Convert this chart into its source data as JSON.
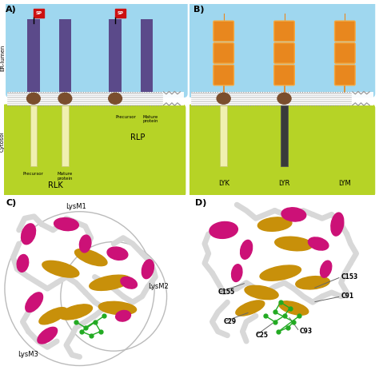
{
  "bg_color": "#ffffff",
  "sky_blue": "#87CEEB",
  "lime_green": "#AACC00",
  "purple_dark": "#5B4A8A",
  "orange_dark": "#E8871E",
  "orange_light": "#F5A940",
  "yellow_light": "#F0F0B0",
  "dark_gray": "#3A3A3A",
  "brown_oval": "#7A4E2D",
  "red_flag": "#CC1111",
  "magenta": "#CC1177",
  "gold": "#C8900A",
  "green_mol": "#22AA22",
  "membrane_gray": "#CCCCCC",
  "dot_gray": "#999999",
  "ribbon_gray": "#D8D8D8",
  "ribbon_gray_dark": "#AAAAAA",
  "panel_labels": [
    "A)",
    "B)",
    "C)",
    "D)"
  ],
  "er_lumen_label": "ER-lumen",
  "cytosol_label": "Cytosol",
  "rlk_label": "RLK",
  "rlp_label": "RLP",
  "lyk_label": "LYK",
  "lyr_label": "LYR",
  "lym_label": "LYM",
  "lysm1_label": "LysM1",
  "lysm2_label": "LysM2",
  "lysm3_label": "LysM3",
  "sp_label": "SP",
  "c_labels": [
    "C155",
    "C29",
    "C25",
    "C93",
    "C153",
    "C91"
  ]
}
